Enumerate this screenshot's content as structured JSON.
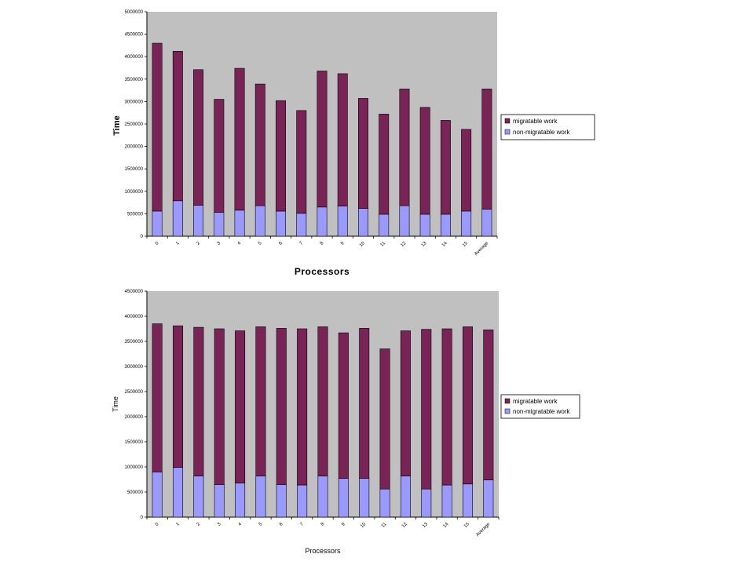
{
  "chart_data": [
    {
      "type": "bar",
      "stacked": true,
      "categories": [
        "0",
        "1",
        "2",
        "3",
        "4",
        "5",
        "6",
        "7",
        "8",
        "9",
        "10",
        "11",
        "12",
        "13",
        "14",
        "15",
        "Average"
      ],
      "series": [
        {
          "name": "non-migratable work",
          "color": "#9999ff",
          "values": [
            560000,
            790000,
            690000,
            530000,
            580000,
            680000,
            560000,
            510000,
            650000,
            670000,
            620000,
            490000,
            680000,
            490000,
            490000,
            560000,
            600000
          ]
        },
        {
          "name": "migratable work",
          "color": "#7a2356",
          "values": [
            3740000,
            3330000,
            3020000,
            2520000,
            3160000,
            2710000,
            2460000,
            2290000,
            3030000,
            2950000,
            2450000,
            2230000,
            2600000,
            2380000,
            2090000,
            1820000,
            2680000
          ]
        }
      ],
      "ylim": [
        0,
        5000000
      ],
      "yticks": [
        "0",
        "500000",
        "1000000",
        "1500000",
        "2000000",
        "2500000",
        "3000000",
        "3500000",
        "4000000",
        "4500000",
        "5000000"
      ],
      "xlabel": "Processors",
      "ylabel": "Time",
      "legend": "right",
      "grid": false,
      "plot_bg": "#c0c0c0"
    },
    {
      "type": "bar",
      "stacked": true,
      "categories": [
        "0",
        "1",
        "2",
        "3",
        "4",
        "5",
        "6",
        "7",
        "8",
        "9",
        "10",
        "11",
        "12",
        "13",
        "14",
        "15",
        "Average"
      ],
      "series": [
        {
          "name": "non-migratable work",
          "color": "#9999ff",
          "values": [
            900000,
            990000,
            820000,
            650000,
            680000,
            820000,
            650000,
            640000,
            820000,
            770000,
            770000,
            560000,
            820000,
            560000,
            640000,
            660000,
            740000
          ]
        },
        {
          "name": "migratable work",
          "color": "#7a2356",
          "values": [
            2950000,
            2820000,
            2960000,
            3100000,
            3030000,
            2970000,
            3110000,
            3110000,
            2970000,
            2900000,
            2990000,
            2790000,
            2890000,
            3180000,
            3110000,
            3130000,
            2990000
          ]
        }
      ],
      "ylim": [
        0,
        4500000
      ],
      "yticks": [
        "0",
        "500000",
        "1000000",
        "1500000",
        "2000000",
        "2500000",
        "3000000",
        "3500000",
        "4000000",
        "4500000"
      ],
      "xlabel": "Processors",
      "ylabel": "Time",
      "legend": "right",
      "grid": false,
      "plot_bg": "#c0c0c0"
    }
  ]
}
